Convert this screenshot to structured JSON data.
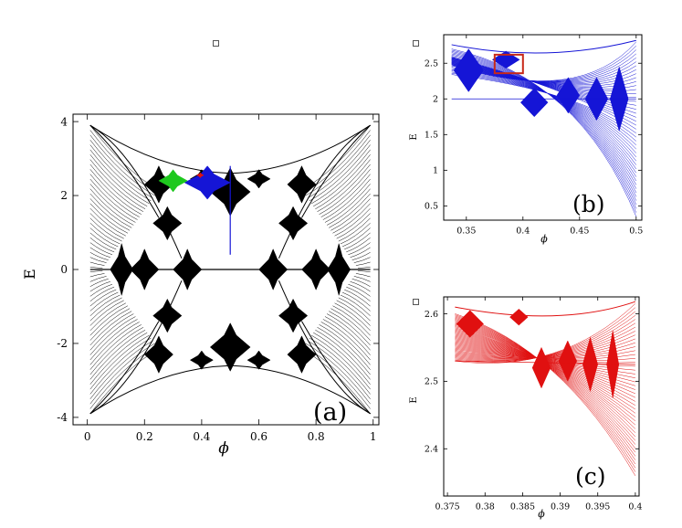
{
  "chart_data": [
    {
      "type": "line",
      "panel_label": "(a)",
      "xlabel": "ϕ",
      "ylabel": "E",
      "xlim": [
        -0.05,
        1.02
      ],
      "ylim": [
        -4.2,
        4.2
      ],
      "xticks": [
        "0",
        "0.2",
        "0.4",
        "0.6",
        "0.8",
        "1"
      ],
      "yticks": [
        "-4",
        "-2",
        "0",
        "2",
        "4"
      ],
      "series_colors": {
        "main": "#000000",
        "zoom_b": "#1515d6",
        "zoom_c": "#e01010",
        "highlight": "#1ec81e"
      },
      "features": {
        "band_edge_max": 3.9,
        "butterfly_centers": [
          0.25,
          0.5,
          0.75
        ],
        "zoom_region_b": {
          "x": [
            0.333,
            0.5
          ],
          "y": [
            2.0,
            2.82
          ]
        }
      }
    },
    {
      "type": "line",
      "panel_label": "(b)",
      "xlabel": "ϕ",
      "ylabel": "E",
      "xlim": [
        0.33,
        0.505
      ],
      "ylim": [
        0.3,
        2.9
      ],
      "xticks": [
        "0.35",
        "0.4",
        "0.45",
        "0.5"
      ],
      "yticks": [
        "0.5",
        "1",
        "1.5",
        "2",
        "2.5"
      ],
      "color": "#1515d6",
      "zoom_box": {
        "x": [
          0.375,
          0.4
        ],
        "y": [
          2.36,
          2.62
        ],
        "color": "#c82818"
      }
    },
    {
      "type": "line",
      "panel_label": "(c)",
      "xlabel": "ϕ",
      "ylabel": "E",
      "xlim": [
        0.3745,
        0.4005
      ],
      "ylim": [
        2.33,
        2.625
      ],
      "xticks": [
        "0.375",
        "0.38",
        "0.385",
        "0.39",
        "0.395",
        "0.4"
      ],
      "yticks": [
        "2.4",
        "2.5",
        "2.6"
      ],
      "color": "#e01010"
    }
  ]
}
